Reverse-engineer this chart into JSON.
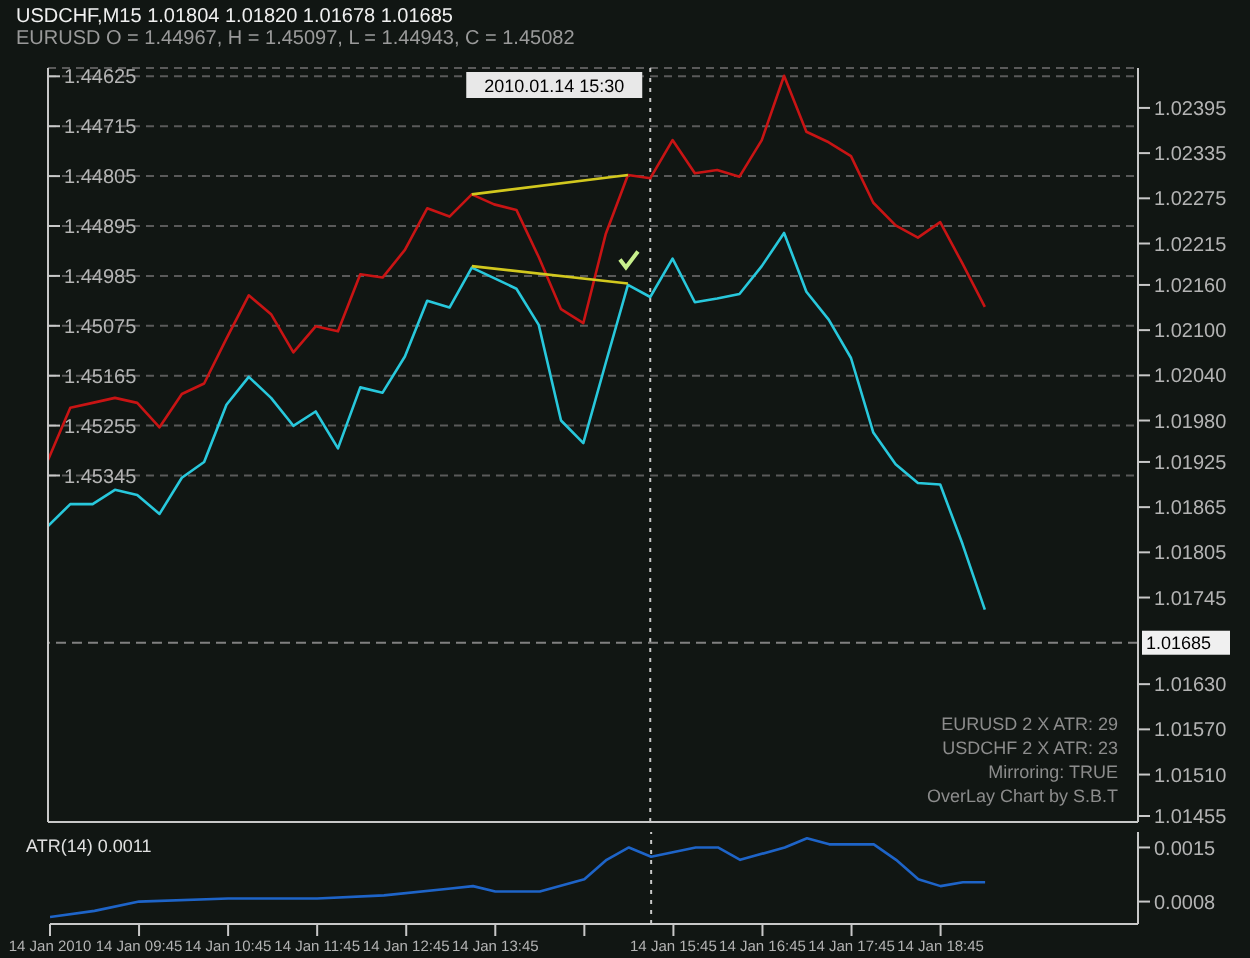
{
  "chart_data": [
    {
      "type": "line",
      "title": "USDCHF,M15  1.01804 1.01820 1.01678 1.01685",
      "subtitle": "EURUSD O = 1.44967, H = 1.45097, L = 1.44943, C = 1.45082",
      "annotations": [
        "EURUSD 2 X ATR: 29",
        "USDCHF 2 X ATR: 23",
        "Mirroring: TRUE",
        "OverLay Chart by S.B.T"
      ],
      "xlim": [
        "2010-01-14T08:45",
        "2010-01-14T20:58"
      ],
      "tick_labels": "y",
      "grid": "y",
      "marker": "none",
      "line_style": "solid",
      "ylim": [
        1.4597,
        1.4461
      ],
      "yticks": [
        1.44625,
        1.44715,
        1.44805,
        1.44895,
        1.44985,
        1.45075,
        1.45165,
        1.45255,
        1.45345
      ],
      "y2lim": [
        1.01447,
        1.02448
      ],
      "y2ticks": [
        1.02395,
        1.02335,
        1.02275,
        1.02215,
        {
          "value": 1.0216,
          "label": "1.02160"
        },
        {
          "value": 1.021,
          "label": "1.02100"
        },
        {
          "value": 1.0204,
          "label": "1.02040"
        },
        {
          "value": 1.0198,
          "label": "1.01980"
        },
        1.01925,
        1.01865,
        1.01805,
        1.01745,
        {
          "value": 1.0163,
          "label": "1.01630"
        },
        {
          "value": 1.0157,
          "label": "1.01570"
        },
        {
          "value": 1.0151,
          "label": "1.01510"
        },
        1.01455
      ],
      "ref_lines": [
        {
          "axis": "x",
          "value": "2010-01-14T15:30",
          "label": "2010.01.14 15:30",
          "color": "#c8c8c8",
          "line_style": "dotted"
        },
        {
          "axis": "y2",
          "value": 1.01685,
          "label": "1.01685",
          "color": "#808080",
          "line_style": "dashed"
        }
      ],
      "series": [
        {
          "color": "#c81414",
          "axis": "y",
          "x": [
            "2010-01-14T08:45",
            "2010-01-14T09:00",
            "2010-01-14T09:15",
            "2010-01-14T09:30",
            "2010-01-14T09:45",
            "2010-01-14T10:00",
            "2010-01-14T10:15",
            "2010-01-14T10:30",
            "2010-01-14T10:45",
            "2010-01-14T11:00",
            "2010-01-14T11:15",
            "2010-01-14T11:30",
            "2010-01-14T11:45",
            "2010-01-14T12:00",
            "2010-01-14T12:15",
            "2010-01-14T12:30",
            "2010-01-14T12:45",
            "2010-01-14T13:00",
            "2010-01-14T13:15",
            "2010-01-14T13:30",
            "2010-01-14T13:45",
            "2010-01-14T14:00",
            "2010-01-14T14:15",
            "2010-01-14T14:30",
            "2010-01-14T14:45",
            "2010-01-14T15:00",
            "2010-01-14T15:15",
            "2010-01-14T15:30",
            "2010-01-14T15:45",
            "2010-01-14T16:00",
            "2010-01-14T16:15",
            "2010-01-14T16:30",
            "2010-01-14T16:45",
            "2010-01-14T17:00",
            "2010-01-14T17:15",
            "2010-01-14T17:30",
            "2010-01-14T17:45",
            "2010-01-14T18:00",
            "2010-01-14T18:15",
            "2010-01-14T18:30",
            "2010-01-14T18:45",
            "2010-01-14T19:00",
            "2010-01-14T19:15"
          ],
          "values": [
            1.45317,
            1.45223,
            1.45214,
            1.45205,
            1.45214,
            1.45258,
            1.45198,
            1.45179,
            1.45098,
            1.4502,
            1.45054,
            1.45123,
            1.45076,
            1.45085,
            1.44982,
            1.44988,
            1.44938,
            1.44863,
            1.44878,
            1.44838,
            1.44856,
            1.44866,
            1.44951,
            1.45045,
            1.4507,
            1.4491,
            1.44803,
            1.44809,
            1.4474,
            1.448,
            1.44794,
            1.44806,
            1.4474,
            1.44624,
            1.44725,
            1.44744,
            1.44769,
            1.44853,
            1.44894,
            1.44916,
            1.44888,
            1.44963,
            1.45041
          ]
        },
        {
          "color": "#28c8dc",
          "axis": "y2",
          "x": [
            "2010-01-14T08:45",
            "2010-01-14T09:00",
            "2010-01-14T09:15",
            "2010-01-14T09:30",
            "2010-01-14T09:45",
            "2010-01-14T10:00",
            "2010-01-14T10:15",
            "2010-01-14T10:30",
            "2010-01-14T10:45",
            "2010-01-14T11:00",
            "2010-01-14T11:15",
            "2010-01-14T11:30",
            "2010-01-14T11:45",
            "2010-01-14T12:00",
            "2010-01-14T12:15",
            "2010-01-14T12:30",
            "2010-01-14T12:45",
            "2010-01-14T13:00",
            "2010-01-14T13:15",
            "2010-01-14T13:30",
            "2010-01-14T13:45",
            "2010-01-14T14:00",
            "2010-01-14T14:15",
            "2010-01-14T14:30",
            "2010-01-14T14:45",
            "2010-01-14T15:00",
            "2010-01-14T15:15",
            "2010-01-14T15:30",
            "2010-01-14T15:45",
            "2010-01-14T16:00",
            "2010-01-14T16:15",
            "2010-01-14T16:30",
            "2010-01-14T16:45",
            "2010-01-14T17:00",
            "2010-01-14T17:15",
            "2010-01-14T17:30",
            "2010-01-14T17:45",
            "2010-01-14T18:00",
            "2010-01-14T18:15",
            "2010-01-14T18:30",
            "2010-01-14T18:45",
            "2010-01-14T19:00",
            "2010-01-14T19:15"
          ],
          "values": [
            1.0184,
            1.01869,
            1.01869,
            1.01888,
            1.01881,
            1.01856,
            1.01904,
            1.01925,
            1.02001,
            1.02038,
            1.0201,
            1.01973,
            1.01992,
            1.01943,
            1.02024,
            1.02017,
            1.02065,
            1.02139,
            1.0213,
            1.02183,
            1.02169,
            1.02155,
            1.02107,
            1.0198,
            1.0195,
            1.02056,
            1.0216,
            1.02144,
            1.02195,
            1.02137,
            1.02142,
            1.02148,
            1.02185,
            1.02229,
            1.02151,
            1.02114,
            1.02063,
            1.01964,
            1.01922,
            1.01897,
            1.01895,
            1.01816,
            1.01729
          ]
        },
        {
          "type": "line",
          "color": "#d2c81e",
          "axis": "y",
          "x": [
            "2010-01-14T13:30",
            "2010-01-14T15:15"
          ],
          "values": [
            1.44838,
            1.44803
          ]
        },
        {
          "type": "line",
          "color": "#d2c81e",
          "axis": "y2",
          "x": [
            "2010-01-14T13:30",
            "2010-01-14T15:15"
          ],
          "values": [
            1.02185,
            1.02162
          ]
        }
      ]
    },
    {
      "type": "line",
      "title": "ATR(14) 0.0011",
      "xlim": [
        "2010-01-14T08:45",
        "2010-01-14T20:58"
      ],
      "marker": "none",
      "xticks": [
        {
          "value": "2010-01-14T08:45",
          "label": "14 Jan 2010"
        },
        {
          "value": "2010-01-14T09:45",
          "label": "14 Jan 09:45"
        },
        {
          "value": "2010-01-14T10:45",
          "label": "14 Jan 10:45"
        },
        {
          "value": "2010-01-14T11:45",
          "label": "14 Jan 11:45"
        },
        {
          "value": "2010-01-14T12:45",
          "label": "14 Jan 12:45"
        },
        {
          "value": "2010-01-14T13:45",
          "label": "14 Jan 13:45"
        },
        {
          "value": "2010-01-14T14:45",
          "label": null
        },
        {
          "value": "2010-01-14T15:45",
          "label": "14 Jan 15:45"
        },
        {
          "value": "2010-01-14T16:45",
          "label": "14 Jan 16:45"
        },
        {
          "value": "2010-01-14T17:45",
          "label": "14 Jan 17:45"
        },
        {
          "value": "2010-01-14T18:45",
          "label": "14 Jan 18:45"
        }
      ],
      "ylim": [
        0.00051,
        0.0017
      ],
      "yticks": [
        0.0015,
        0.0008
      ],
      "ref_lines": [
        {
          "axis": "x",
          "value": "2010-01-14T15:30",
          "color": "#c8c8c8",
          "line_style": "dotted"
        }
      ],
      "series": [
        {
          "color": "#1e64c8",
          "x": [
            "2010-01-14T08:45",
            "2010-01-14T09:15",
            "2010-01-14T09:45",
            "2010-01-14T10:45",
            "2010-01-14T11:45",
            "2010-01-14T12:30",
            "2010-01-14T13:15",
            "2010-01-14T13:30",
            "2010-01-14T13:45",
            "2010-01-14T14:15",
            "2010-01-14T14:45",
            "2010-01-14T15:00",
            "2010-01-14T15:15",
            "2010-01-14T15:30",
            "2010-01-14T16:00",
            "2010-01-14T16:15",
            "2010-01-14T16:30",
            "2010-01-14T17:00",
            "2010-01-14T17:15",
            "2010-01-14T17:30",
            "2010-01-14T18:00",
            "2010-01-14T18:15",
            "2010-01-14T18:30",
            "2010-01-14T18:45",
            "2010-01-14T19:00",
            "2010-01-14T19:15"
          ],
          "values": [
            0.0006,
            0.00068,
            0.0008,
            0.00084,
            0.00084,
            0.00088,
            0.00097,
            0.001,
            0.00093,
            0.00093,
            0.00109,
            0.00134,
            0.0015,
            0.00138,
            0.0015,
            0.0015,
            0.00134,
            0.0015,
            0.00162,
            0.00154,
            0.00154,
            0.00134,
            0.00109,
            0.001,
            0.00105,
            0.00105
          ]
        }
      ]
    }
  ]
}
